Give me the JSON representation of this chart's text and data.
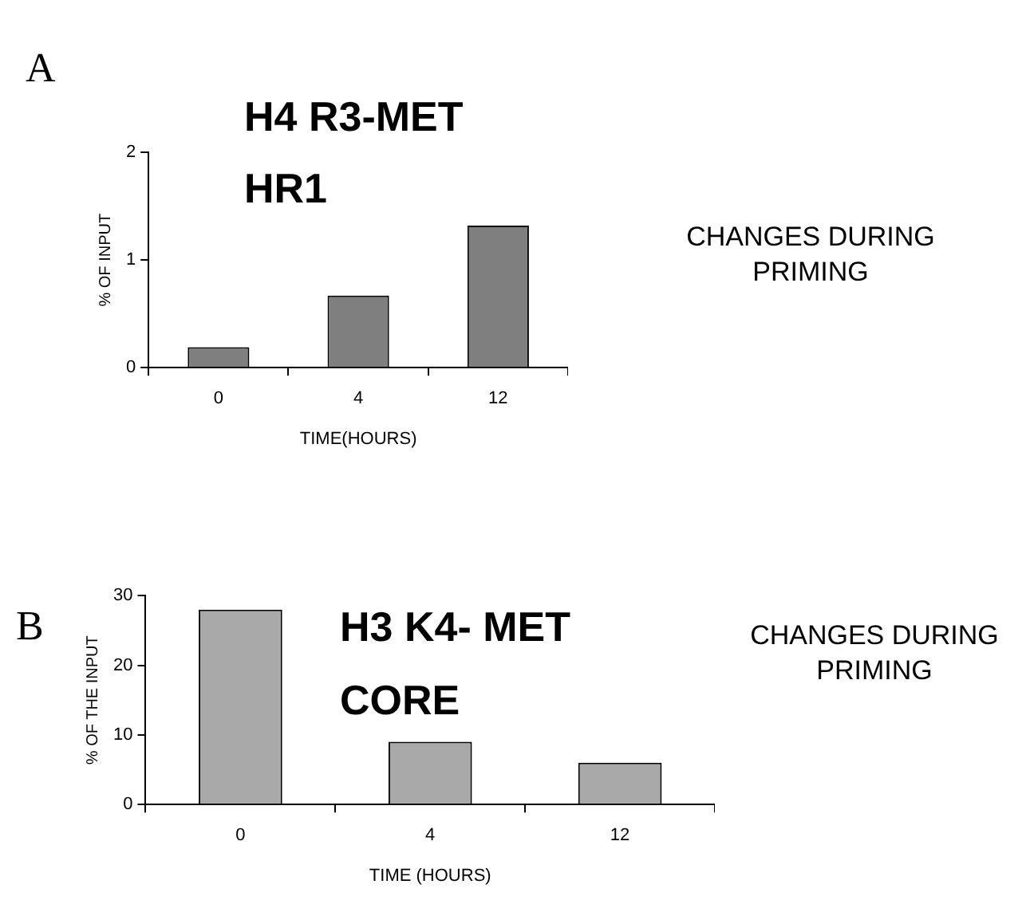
{
  "chart_data": [
    {
      "type": "bar",
      "title": "H4 R3-MET",
      "subtitle": "HR1",
      "xlabel": "TIME(HOURS)",
      "ylabel": "% OF INPUT",
      "categories": [
        "0",
        "4",
        "12"
      ],
      "values": [
        0.19,
        0.67,
        1.32
      ],
      "color": "#7f7f7f",
      "ylim": [
        0,
        2
      ],
      "yticks": [
        0,
        1,
        2
      ],
      "grid": false,
      "legend": false,
      "annotations": [
        "A",
        "CHANGES DURING PRIMING"
      ]
    },
    {
      "type": "bar",
      "title": "H3 K4- MET",
      "subtitle": "CORE",
      "xlabel": "TIME (HOURS)",
      "ylabel": "% OF THE INPUT",
      "categories": [
        "0",
        "4",
        "12"
      ],
      "values": [
        28,
        9,
        6
      ],
      "color": "#a9a9a9",
      "ylim": [
        0,
        30
      ],
      "yticks": [
        0,
        10,
        20,
        30
      ],
      "grid": false,
      "legend": false,
      "annotations": [
        "B",
        "CHANGES DURING PRIMING"
      ]
    }
  ]
}
